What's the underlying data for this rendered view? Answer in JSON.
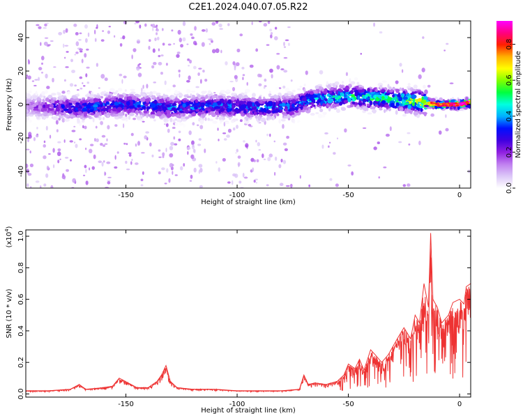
{
  "figure": {
    "title": "C2E1.2024.040.07.05.R22"
  },
  "colors": {
    "snr_line": "#ee3333",
    "axes": "#000000",
    "background": "#ffffff",
    "colormap": [
      "#ffffff",
      "#dcc8f8",
      "#c080f0",
      "#9020e0",
      "#4000e0",
      "#0010ff",
      "#00b0ff",
      "#00ffe0",
      "#00ff40",
      "#80ff00",
      "#ffff00",
      "#ffb000",
      "#ff2000",
      "#ff0080",
      "#ff00ff"
    ]
  },
  "chart_data": [
    {
      "type": "heatmap",
      "title": "",
      "xlabel": "Height of straight line (km)",
      "ylabel": "Frequency (Hz)",
      "colorbar_label": "Normalized spectral amplitude",
      "xlim": [
        -195,
        5
      ],
      "ylim": [
        -50,
        50
      ],
      "clim": [
        0,
        0.93
      ],
      "xticks": [
        -150,
        -100,
        -50,
        0
      ],
      "xtick_labels": [
        "-150",
        "-100",
        "-50",
        "0"
      ],
      "yticks": [
        -40,
        -20,
        0,
        20,
        40
      ],
      "ytick_labels": [
        "-40",
        "-20",
        "0",
        "20",
        "40"
      ],
      "cticks": [
        0,
        0.2,
        0.4,
        0.6,
        0.8
      ],
      "ctick_labels": [
        "0.0",
        "0.2",
        "0.4",
        "0.6",
        "0.8"
      ],
      "signal_band": {
        "center_hz": [
          [
            -195,
            -1
          ],
          [
            -170,
            -2
          ],
          [
            -150,
            0
          ],
          [
            -130,
            -2
          ],
          [
            -110,
            -1
          ],
          [
            -90,
            -2
          ],
          [
            -75,
            -1
          ],
          [
            -70,
            2
          ],
          [
            -60,
            4
          ],
          [
            -50,
            5
          ],
          [
            -40,
            4
          ],
          [
            -30,
            3
          ],
          [
            -20,
            2
          ],
          [
            -10,
            0
          ],
          [
            0,
            0
          ],
          [
            4,
            1
          ]
        ],
        "peak_amplitude": [
          [
            -195,
            0.15
          ],
          [
            -175,
            0.35
          ],
          [
            -120,
            0.38
          ],
          [
            -75,
            0.38
          ],
          [
            -65,
            0.45
          ],
          [
            -50,
            0.5
          ],
          [
            -30,
            0.55
          ],
          [
            -20,
            0.65
          ],
          [
            -12,
            0.8
          ],
          [
            -5,
            0.85
          ],
          [
            0,
            0.88
          ],
          [
            4,
            0.9
          ]
        ]
      }
    },
    {
      "type": "line",
      "title": "",
      "xlabel": "Height of straight line (km)",
      "ylabel": "SNR (10 * v/v)",
      "y_scale_label": "(x10",
      "y_scale_exponent": "4",
      "y_scale_suffix": ")",
      "xlim": [
        -195,
        5
      ],
      "ylim": [
        -0.02,
        1.04
      ],
      "xticks": [
        -150,
        -100,
        -50,
        0
      ],
      "xtick_labels": [
        "-150",
        "-100",
        "-50",
        "0"
      ],
      "yticks": [
        0,
        0.2,
        0.4,
        0.6,
        0.8,
        1.0
      ],
      "ytick_labels": [
        "0.0",
        "0.2",
        "0.4",
        "0.6",
        "0.8",
        "1.0"
      ],
      "series": [
        {
          "x": [
            -195,
            -185,
            -175,
            -171,
            -168,
            -160,
            -156,
            -153,
            -145,
            -140,
            -136,
            -134,
            -132,
            -130,
            -127,
            -120,
            -110,
            -100,
            -90,
            -80,
            -72,
            -70,
            -68,
            -65,
            -60,
            -55,
            -52,
            -50,
            -47,
            -45,
            -43,
            -40,
            -38,
            -35,
            -32,
            -30,
            -28,
            -25,
            -22,
            -20,
            -18,
            -16,
            -14,
            -13,
            -12,
            -10,
            -8,
            -5,
            -3,
            0,
            2,
            3,
            5
          ],
          "y": [
            0.02,
            0.02,
            0.03,
            0.06,
            0.03,
            0.04,
            0.05,
            0.1,
            0.04,
            0.04,
            0.08,
            0.12,
            0.18,
            0.08,
            0.04,
            0.03,
            0.03,
            0.02,
            0.02,
            0.02,
            0.03,
            0.12,
            0.06,
            0.07,
            0.06,
            0.08,
            0.12,
            0.19,
            0.16,
            0.22,
            0.15,
            0.28,
            0.25,
            0.2,
            0.25,
            0.3,
            0.35,
            0.42,
            0.35,
            0.5,
            0.45,
            0.7,
            0.55,
            1.02,
            0.6,
            0.55,
            0.45,
            0.5,
            0.58,
            0.6,
            0.57,
            0.68,
            0.7
          ]
        }
      ]
    }
  ]
}
